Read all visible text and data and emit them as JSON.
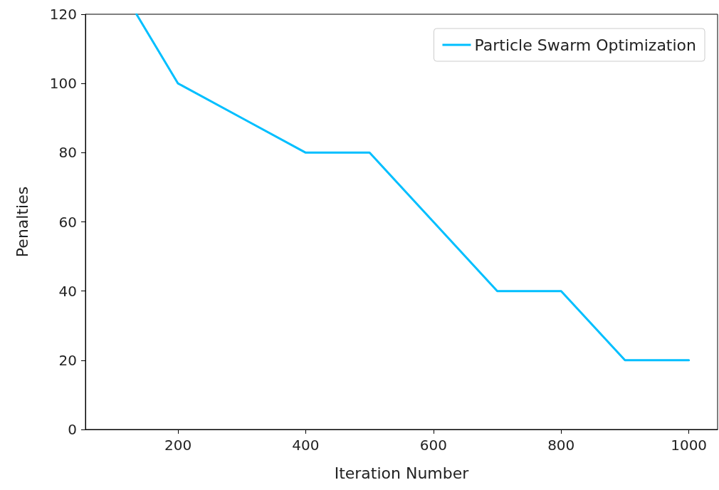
{
  "chart_data": {
    "type": "line",
    "xlabel": "Iteration Number",
    "ylabel": "Penalties",
    "x": [
      135,
      200,
      300,
      400,
      500,
      600,
      700,
      800,
      900,
      1000
    ],
    "series": [
      {
        "name": "Particle Swarm Optimization",
        "color": "#00bfff",
        "values": [
          120,
          100,
          90,
          80,
          80,
          60,
          40,
          40,
          20,
          20
        ]
      }
    ],
    "xlim": [
      55,
      1045
    ],
    "xticks": [
      200,
      400,
      600,
      800,
      1000
    ],
    "ylim": [
      0,
      120
    ],
    "yticks": [
      0,
      20,
      40,
      60,
      80,
      100,
      120
    ],
    "grid": false,
    "legend": "top right",
    "marker": "none",
    "line_style": "solid"
  }
}
